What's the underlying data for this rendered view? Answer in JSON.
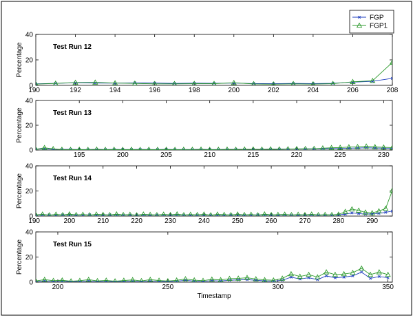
{
  "legend": {
    "placement": "top-right",
    "entries": [
      {
        "name": "FGP",
        "color": "#1f3fbf",
        "marker": "x"
      },
      {
        "name": "FGP1",
        "color": "#2e9a2e",
        "marker": "triangle"
      }
    ]
  },
  "chart_data": [
    {
      "type": "line",
      "title": "Test Run 12",
      "ylabel": "Percentage",
      "xlabel": "",
      "xlim": [
        190,
        208
      ],
      "ylim": [
        0,
        40
      ],
      "xticks": [
        190,
        192,
        194,
        196,
        198,
        200,
        202,
        204,
        206,
        208
      ],
      "yticks": [
        0,
        20,
        40
      ],
      "grid": false,
      "series": [
        {
          "name": "FGP",
          "x": [
            190,
            191,
            192,
            193,
            194,
            195,
            196,
            197,
            198,
            199,
            200,
            201,
            202,
            203,
            204,
            205,
            206,
            207,
            208
          ],
          "y": [
            1.2,
            1.6,
            2.0,
            1.8,
            1.7,
            1.9,
            1.8,
            1.5,
            1.7,
            1.6,
            1.8,
            1.4,
            1.3,
            1.5,
            1.4,
            1.6,
            2.5,
            3.2,
            5.5
          ]
        },
        {
          "name": "FGP1",
          "x": [
            190,
            191,
            192,
            193,
            194,
            195,
            196,
            197,
            198,
            199,
            200,
            201,
            202,
            203,
            204,
            205,
            206,
            207,
            208
          ],
          "y": [
            1.0,
            1.5,
            2.2,
            2.3,
            1.8,
            1.5,
            1.2,
            1.2,
            1.3,
            1.3,
            2.0,
            1.1,
            0.9,
            1.2,
            1.0,
            1.3,
            2.8,
            3.6,
            18.0
          ]
        }
      ]
    },
    {
      "type": "line",
      "title": "Test Run 13",
      "ylabel": "Percentage",
      "xlabel": "",
      "xlim": [
        190,
        231
      ],
      "ylim": [
        0,
        40
      ],
      "xticks": [
        195,
        200,
        205,
        210,
        215,
        220,
        225,
        230
      ],
      "yticks": [
        0,
        20,
        40
      ],
      "grid": false,
      "series": [
        {
          "name": "FGP",
          "x": [
            190,
            191,
            192,
            193,
            194,
            195,
            196,
            197,
            198,
            199,
            200,
            201,
            202,
            203,
            204,
            205,
            206,
            207,
            208,
            209,
            210,
            211,
            212,
            213,
            214,
            215,
            216,
            217,
            218,
            219,
            220,
            221,
            222,
            223,
            224,
            225,
            226,
            227,
            228,
            229,
            230,
            231
          ],
          "y": [
            0.8,
            1.0,
            0.6,
            0.5,
            0.5,
            0.4,
            0.4,
            0.5,
            0.4,
            0.5,
            0.4,
            0.4,
            0.5,
            0.4,
            0.4,
            0.5,
            0.4,
            0.4,
            0.4,
            0.5,
            0.4,
            0.4,
            0.5,
            0.5,
            0.5,
            0.6,
            0.6,
            0.7,
            0.7,
            0.8,
            0.8,
            0.9,
            1.0,
            1.1,
            1.2,
            1.3,
            1.5,
            1.6,
            1.8,
            1.6,
            1.5,
            1.4
          ]
        },
        {
          "name": "FGP1",
          "x": [
            190,
            191,
            192,
            193,
            194,
            195,
            196,
            197,
            198,
            199,
            200,
            201,
            202,
            203,
            204,
            205,
            206,
            207,
            208,
            209,
            210,
            211,
            212,
            213,
            214,
            215,
            216,
            217,
            218,
            219,
            220,
            221,
            222,
            223,
            224,
            225,
            226,
            227,
            228,
            229,
            230,
            231
          ],
          "y": [
            0.6,
            1.8,
            0.9,
            0.4,
            0.3,
            0.4,
            0.3,
            0.5,
            0.3,
            0.4,
            0.3,
            0.4,
            0.3,
            0.4,
            0.3,
            0.4,
            0.3,
            0.4,
            0.4,
            0.5,
            0.3,
            0.4,
            0.5,
            0.4,
            0.6,
            0.6,
            0.5,
            0.7,
            0.6,
            0.8,
            0.9,
            1.0,
            1.1,
            1.5,
            1.8,
            2.0,
            2.4,
            2.6,
            3.0,
            2.5,
            2.2,
            2.0
          ]
        }
      ]
    },
    {
      "type": "line",
      "title": "Test Run 14",
      "ylabel": "Percentage",
      "xlabel": "",
      "xlim": [
        190,
        296
      ],
      "ylim": [
        0,
        40
      ],
      "xticks": [
        190,
        200,
        210,
        220,
        230,
        240,
        250,
        260,
        270,
        280,
        290
      ],
      "yticks": [
        0,
        20,
        40
      ],
      "grid": false,
      "series": [
        {
          "name": "FGP",
          "x": [
            190,
            192,
            194,
            196,
            198,
            200,
            202,
            204,
            206,
            208,
            210,
            212,
            214,
            216,
            218,
            220,
            222,
            224,
            226,
            228,
            230,
            232,
            234,
            236,
            238,
            240,
            242,
            244,
            246,
            248,
            250,
            252,
            254,
            256,
            258,
            260,
            262,
            264,
            266,
            268,
            270,
            272,
            274,
            276,
            278,
            280,
            282,
            284,
            286,
            288,
            290,
            292,
            294,
            296
          ],
          "y": [
            0.8,
            1.0,
            0.9,
            0.8,
            1.0,
            0.9,
            0.8,
            0.9,
            1.0,
            0.8,
            0.9,
            1.0,
            0.8,
            0.9,
            1.0,
            0.8,
            0.9,
            0.8,
            1.0,
            0.9,
            0.8,
            1.0,
            0.9,
            0.8,
            0.9,
            1.0,
            0.8,
            0.9,
            0.8,
            1.0,
            0.9,
            0.8,
            0.9,
            1.0,
            0.8,
            0.9,
            0.8,
            1.0,
            0.9,
            0.8,
            0.9,
            1.0,
            0.8,
            0.9,
            0.8,
            1.0,
            1.5,
            2.5,
            2.0,
            1.5,
            1.8,
            2.2,
            3.0,
            4.0
          ]
        },
        {
          "name": "FGP1",
          "x": [
            190,
            192,
            194,
            196,
            198,
            200,
            202,
            204,
            206,
            208,
            210,
            212,
            214,
            216,
            218,
            220,
            222,
            224,
            226,
            228,
            230,
            232,
            234,
            236,
            238,
            240,
            242,
            244,
            246,
            248,
            250,
            252,
            254,
            256,
            258,
            260,
            262,
            264,
            266,
            268,
            270,
            272,
            274,
            276,
            278,
            280,
            282,
            284,
            286,
            288,
            290,
            292,
            294,
            296
          ],
          "y": [
            1.0,
            1.4,
            0.8,
            1.3,
            0.9,
            1.5,
            1.0,
            1.2,
            0.8,
            1.4,
            1.1,
            0.9,
            1.5,
            1.0,
            1.2,
            0.8,
            1.4,
            1.1,
            0.9,
            1.3,
            1.0,
            1.5,
            0.9,
            1.2,
            1.0,
            1.4,
            0.8,
            1.3,
            1.1,
            0.9,
            1.4,
            1.0,
            1.2,
            0.8,
            1.5,
            1.0,
            1.1,
            1.3,
            0.9,
            1.2,
            1.0,
            1.4,
            0.9,
            1.1,
            1.0,
            1.3,
            3.5,
            5.5,
            4.5,
            3.0,
            2.5,
            4.0,
            6.0,
            20.5
          ]
        }
      ]
    },
    {
      "type": "line",
      "title": "Test Run 15",
      "ylabel": "Percentage",
      "xlabel": "Timestamp",
      "xlim": [
        190,
        352
      ],
      "ylim": [
        0,
        40
      ],
      "xticks": [
        200,
        250,
        300,
        350
      ],
      "yticks": [
        0,
        20,
        40
      ],
      "grid": false,
      "series": [
        {
          "name": "FGP",
          "x": [
            190,
            194,
            198,
            202,
            206,
            210,
            214,
            218,
            222,
            226,
            230,
            234,
            238,
            242,
            246,
            250,
            254,
            258,
            262,
            266,
            270,
            274,
            278,
            282,
            286,
            290,
            294,
            298,
            302,
            306,
            310,
            314,
            318,
            322,
            326,
            330,
            334,
            338,
            342,
            346,
            350
          ],
          "y": [
            0.5,
            1.0,
            0.6,
            0.8,
            0.4,
            0.6,
            1.0,
            0.5,
            0.7,
            0.4,
            0.6,
            0.8,
            0.5,
            0.9,
            0.6,
            0.4,
            0.7,
            1.5,
            0.8,
            0.6,
            1.2,
            0.9,
            1.5,
            1.8,
            2.0,
            1.5,
            1.0,
            0.8,
            1.5,
            4.0,
            2.5,
            3.5,
            2.0,
            5.0,
            3.5,
            4.0,
            5.0,
            8.0,
            3.0,
            4.5,
            3.5
          ]
        },
        {
          "name": "FGP1",
          "x": [
            190,
            194,
            198,
            202,
            206,
            210,
            214,
            218,
            222,
            226,
            230,
            234,
            238,
            242,
            246,
            250,
            254,
            258,
            262,
            266,
            270,
            274,
            278,
            282,
            286,
            290,
            294,
            298,
            302,
            306,
            310,
            314,
            318,
            322,
            326,
            330,
            334,
            338,
            342,
            346,
            350
          ],
          "y": [
            1.0,
            2.0,
            1.2,
            1.5,
            0.8,
            1.2,
            2.0,
            1.0,
            1.4,
            0.8,
            1.3,
            1.8,
            1.0,
            2.0,
            1.3,
            0.9,
            1.5,
            2.5,
            1.6,
            1.2,
            2.2,
            1.8,
            2.8,
            3.0,
            3.5,
            2.5,
            1.8,
            1.5,
            3.0,
            6.5,
            4.5,
            6.0,
            4.0,
            8.0,
            6.0,
            6.5,
            7.5,
            11.0,
            6.0,
            8.0,
            6.0
          ]
        }
      ]
    }
  ]
}
